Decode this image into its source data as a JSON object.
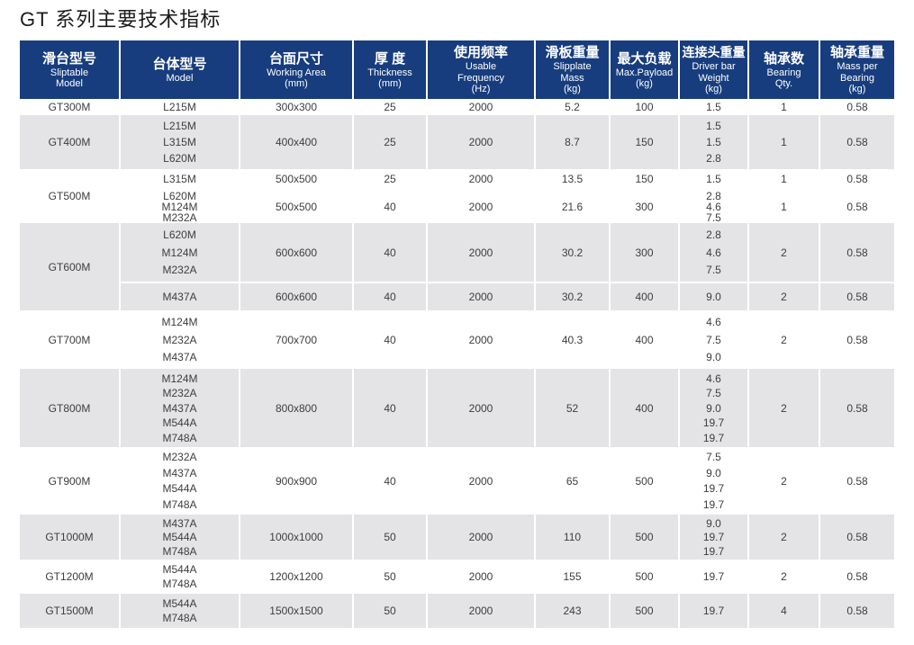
{
  "title": "GT 系列主要技术指标",
  "colors": {
    "header_bg": "#173d7e",
    "header_text": "#ffffff",
    "row_alt_bg": "#e4e4e6",
    "body_text": "#3d3d3d"
  },
  "table": {
    "columns": [
      {
        "zh": "滑台型号",
        "en_lines": [
          "Sliptable",
          "Model"
        ]
      },
      {
        "zh": "台体型号",
        "en_lines": [
          "Model"
        ]
      },
      {
        "zh": "台面尺寸",
        "en_lines": [
          "Working Area",
          "(mm)"
        ]
      },
      {
        "zh": "厚 度",
        "en_lines": [
          "Thickness",
          "(mm)"
        ]
      },
      {
        "zh": "使用频率",
        "en_lines": [
          "Usable",
          "Frequency",
          "(Hz)"
        ]
      },
      {
        "zh": "滑板重量",
        "en_lines": [
          "Slipplate",
          "Mass",
          "(kg)"
        ]
      },
      {
        "zh": "最大负载",
        "en_lines": [
          "Max.Payload",
          "(kg)"
        ]
      },
      {
        "zh": "连接头重量",
        "en_lines": [
          "Driver bar",
          "Weight",
          "(kg)"
        ]
      },
      {
        "zh": "轴承数",
        "en_lines": [
          "Bearing",
          "Qty."
        ]
      },
      {
        "zh": "轴承重量",
        "en_lines": [
          "Mass per",
          "Bearing",
          "(kg)"
        ]
      }
    ],
    "rows": [
      {
        "model": "GT300M",
        "subrows": [
          {
            "models": [
              "L215M"
            ],
            "working_area": "300x300",
            "thickness": "25",
            "frequency": "2000",
            "slipplate_mass": "5.2",
            "max_payload": "100",
            "driver_bar": [
              "1.5"
            ],
            "bearing_qty": "1",
            "mass_per_bearing": "0.58"
          }
        ]
      },
      {
        "model": "GT400M",
        "subrows": [
          {
            "models": [
              "L215M",
              "L315M",
              "L620M"
            ],
            "working_area": "400x400",
            "thickness": "25",
            "frequency": "2000",
            "slipplate_mass": "8.7",
            "max_payload": "150",
            "driver_bar": [
              "1.5",
              "1.5",
              "2.8"
            ],
            "bearing_qty": "1",
            "mass_per_bearing": "0.58"
          }
        ]
      },
      {
        "model": "GT500M",
        "subrows": [
          {
            "models": [
              "L315M"
            ],
            "working_area": "500x500",
            "thickness": "25",
            "frequency": "2000",
            "slipplate_mass": "13.5",
            "max_payload": "150",
            "driver_bar": [
              "1.5"
            ],
            "bearing_qty": "1",
            "mass_per_bearing": "0.58"
          },
          {
            "models": [
              "L620M",
              "M124M",
              "M232A"
            ],
            "working_area": "500x500",
            "thickness": "40",
            "frequency": "2000",
            "slipplate_mass": "21.6",
            "max_payload": "300",
            "driver_bar": [
              "2.8",
              "4.6",
              "7.5"
            ],
            "bearing_qty": "1",
            "mass_per_bearing": "0.58"
          }
        ]
      },
      {
        "model": "GT600M",
        "subrows": [
          {
            "models": [
              "L620M",
              "M124M",
              "M232A"
            ],
            "working_area": "600x600",
            "thickness": "40",
            "frequency": "2000",
            "slipplate_mass": "30.2",
            "max_payload": "300",
            "driver_bar": [
              "2.8",
              "4.6",
              "7.5"
            ],
            "bearing_qty": "2",
            "mass_per_bearing": "0.58"
          },
          {
            "models": [
              "M437A"
            ],
            "working_area": "600x600",
            "thickness": "40",
            "frequency": "2000",
            "slipplate_mass": "30.2",
            "max_payload": "400",
            "driver_bar": [
              "9.0"
            ],
            "bearing_qty": "2",
            "mass_per_bearing": "0.58"
          }
        ]
      },
      {
        "model": "GT700M",
        "subrows": [
          {
            "models": [
              "M124M",
              "M232A",
              "M437A"
            ],
            "working_area": "700x700",
            "thickness": "40",
            "frequency": "2000",
            "slipplate_mass": "40.3",
            "max_payload": "400",
            "driver_bar": [
              "4.6",
              "7.5",
              "9.0"
            ],
            "bearing_qty": "2",
            "mass_per_bearing": "0.58"
          }
        ]
      },
      {
        "model": "GT800M",
        "subrows": [
          {
            "models": [
              "M124M",
              "M232A",
              "M437A",
              "M544A",
              "M748A"
            ],
            "working_area": "800x800",
            "thickness": "40",
            "frequency": "2000",
            "slipplate_mass": "52",
            "max_payload": "400",
            "driver_bar": [
              "4.6",
              "7.5",
              "9.0",
              "19.7",
              "19.7"
            ],
            "bearing_qty": "2",
            "mass_per_bearing": "0.58"
          }
        ]
      },
      {
        "model": "GT900M",
        "subrows": [
          {
            "models": [
              "M232A",
              "M437A",
              "M544A",
              "M748A"
            ],
            "working_area": "900x900",
            "thickness": "40",
            "frequency": "2000",
            "slipplate_mass": "65",
            "max_payload": "500",
            "driver_bar": [
              "7.5",
              "9.0",
              "19.7",
              "19.7"
            ],
            "bearing_qty": "2",
            "mass_per_bearing": "0.58"
          }
        ]
      },
      {
        "model": "GT1000M",
        "subrows": [
          {
            "models": [
              "M437A",
              "M544A",
              "M748A"
            ],
            "working_area": "1000x1000",
            "thickness": "50",
            "frequency": "2000",
            "slipplate_mass": "110",
            "max_payload": "500",
            "driver_bar": [
              "9.0",
              "19.7",
              "19.7"
            ],
            "bearing_qty": "2",
            "mass_per_bearing": "0.58"
          }
        ]
      },
      {
        "model": "GT1200M",
        "subrows": [
          {
            "models": [
              "M544A",
              "M748A"
            ],
            "working_area": "1200x1200",
            "thickness": "50",
            "frequency": "2000",
            "slipplate_mass": "155",
            "max_payload": "500",
            "driver_bar": [
              "19.7"
            ],
            "bearing_qty": "2",
            "mass_per_bearing": "0.58"
          }
        ]
      },
      {
        "model": "GT1500M",
        "subrows": [
          {
            "models": [
              "M544A",
              "M748A"
            ],
            "working_area": "1500x1500",
            "thickness": "50",
            "frequency": "2000",
            "slipplate_mass": "243",
            "max_payload": "500",
            "driver_bar": [
              "19.7"
            ],
            "bearing_qty": "4",
            "mass_per_bearing": "0.58"
          }
        ]
      }
    ]
  }
}
